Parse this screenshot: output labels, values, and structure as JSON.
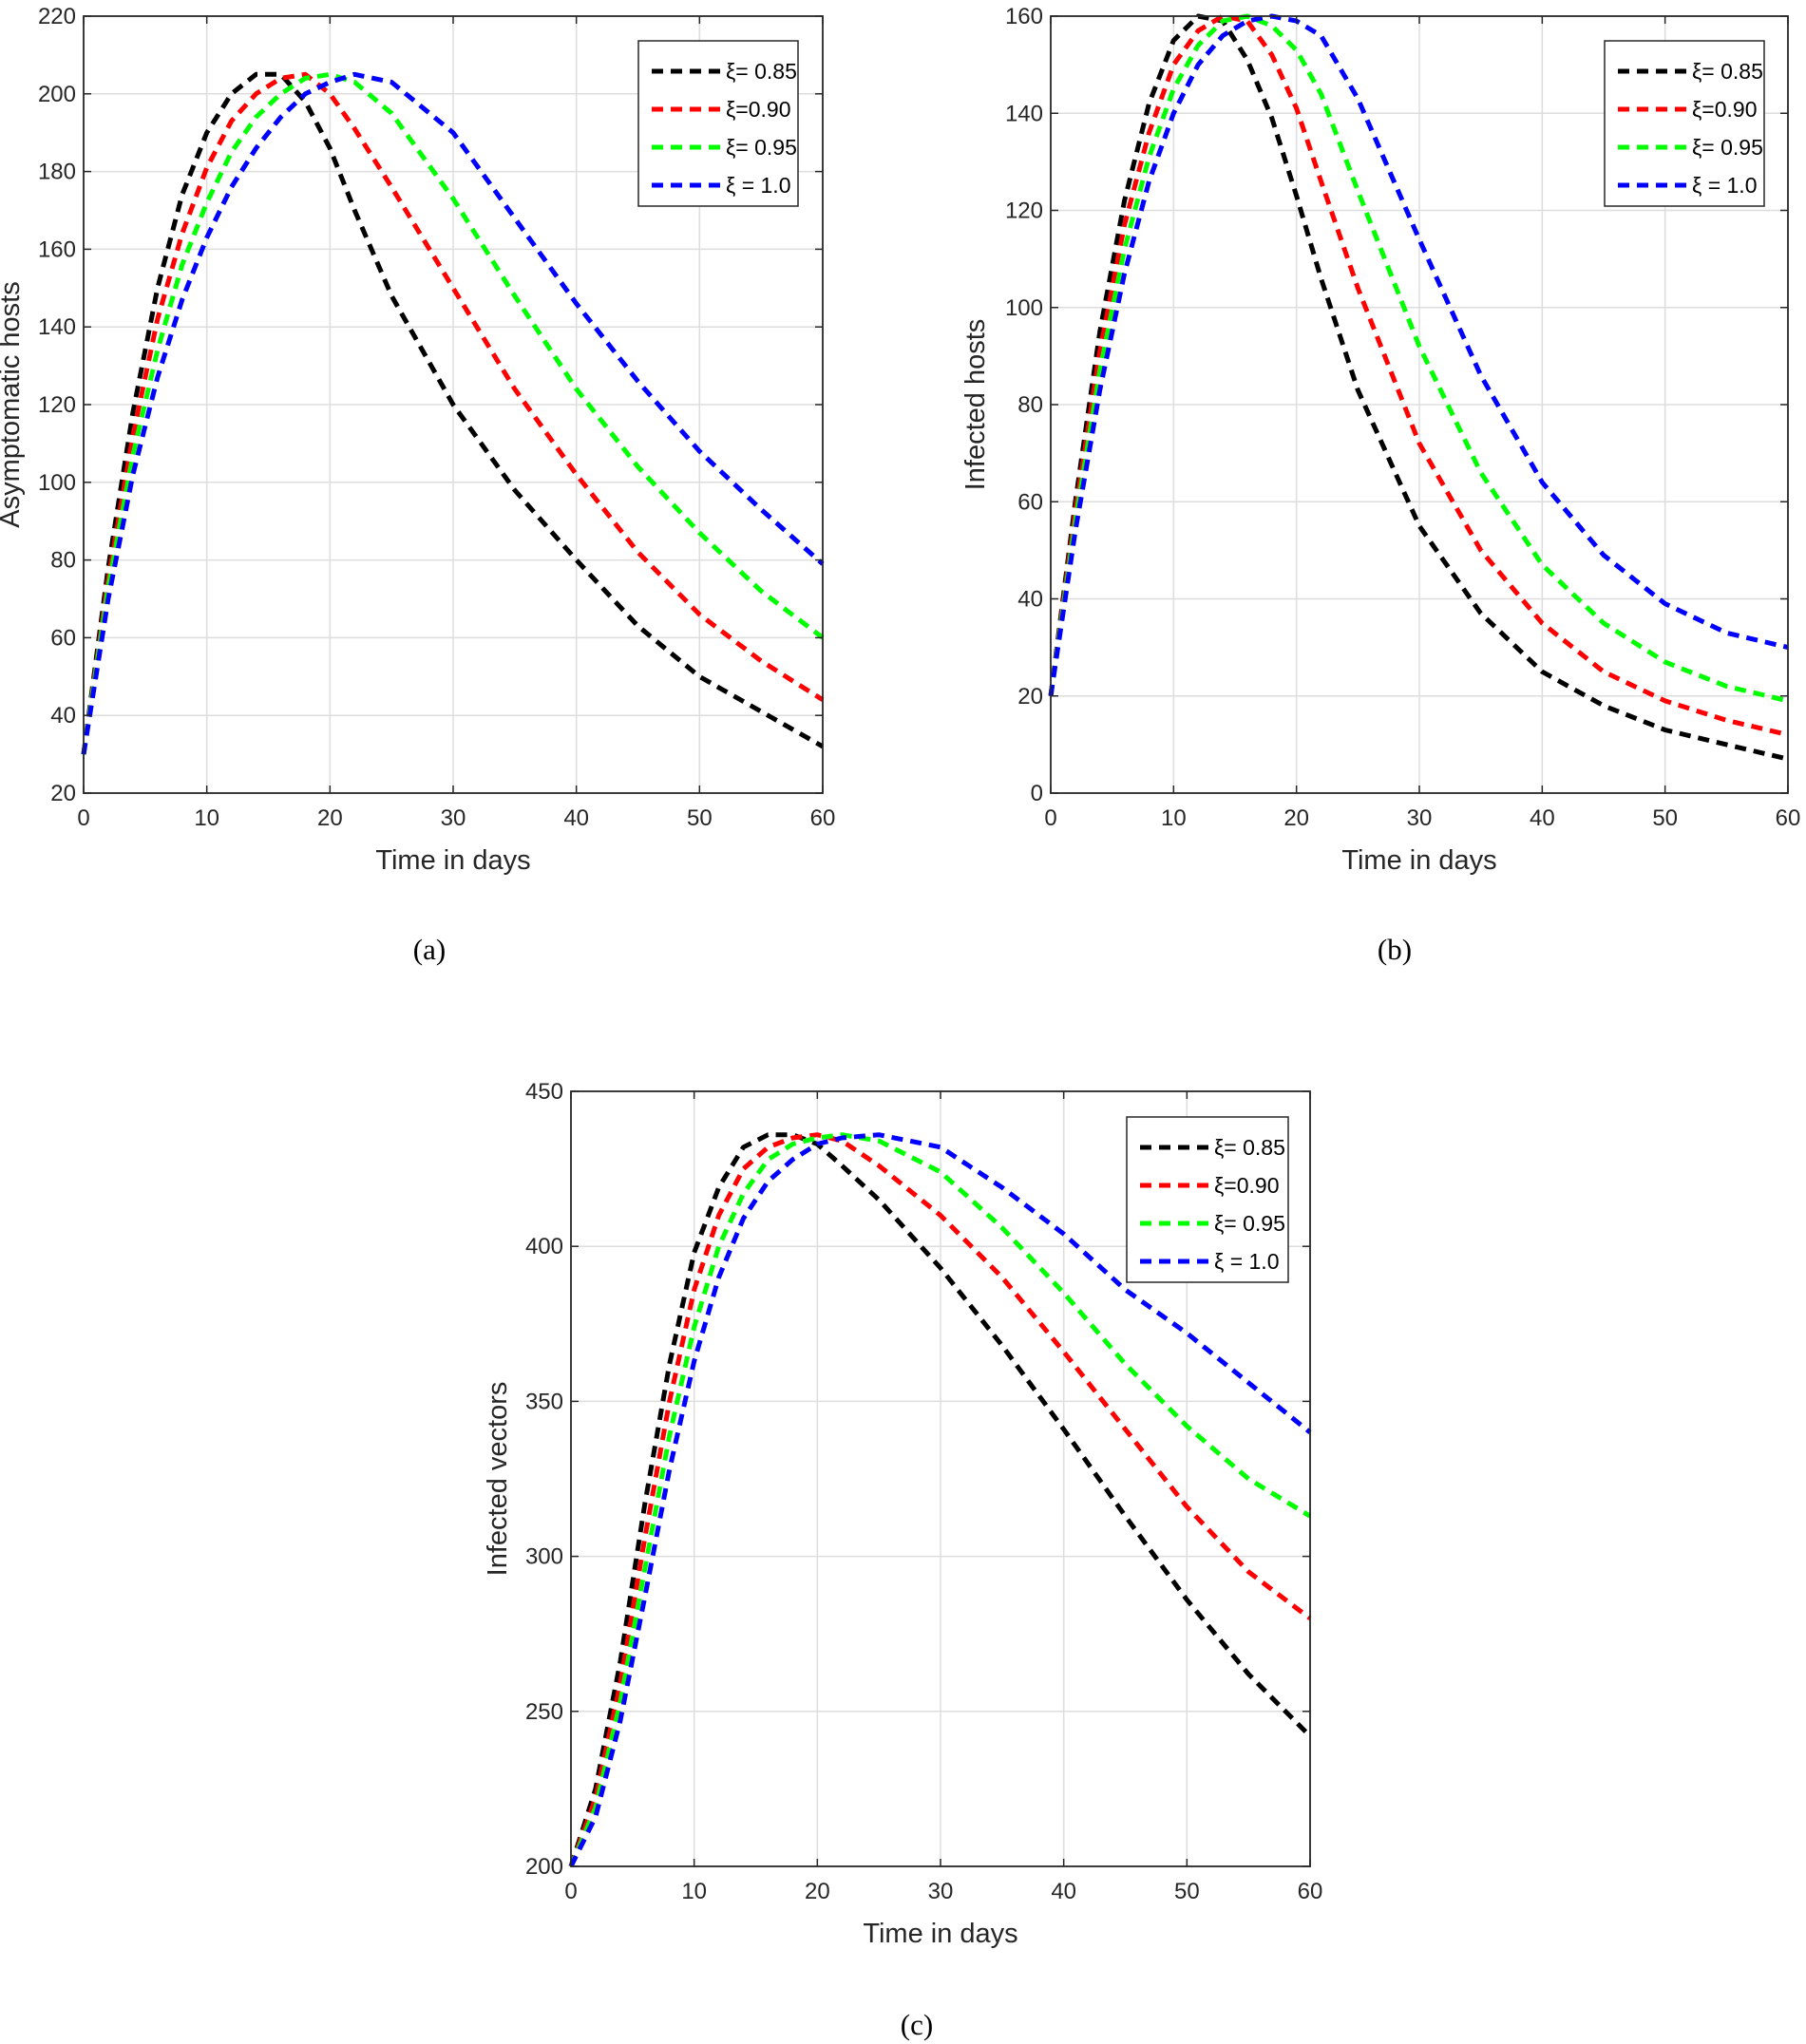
{
  "figure": {
    "captions": [
      "(a)",
      "(b)",
      "(c)"
    ]
  },
  "chart_data": [
    {
      "type": "line",
      "panel": "(a)",
      "xlabel": "Time in days",
      "ylabel": "Asymptomatic  hosts",
      "xlim": [
        0,
        60
      ],
      "ylim": [
        20,
        220
      ],
      "xticks": [
        0,
        10,
        20,
        30,
        40,
        50,
        60
      ],
      "yticks": [
        20,
        40,
        60,
        80,
        100,
        120,
        140,
        160,
        180,
        200,
        220
      ],
      "grid": true,
      "legend_position": "top-right",
      "series": [
        {
          "name": "ξ= 0.85",
          "color": "#000000",
          "x": [
            0,
            2,
            4,
            6,
            8,
            10,
            12,
            14,
            16,
            18,
            20,
            22,
            25,
            30,
            35,
            40,
            45,
            50,
            55,
            60
          ],
          "y": [
            30,
            78,
            118,
            150,
            174,
            190,
            200,
            205,
            205,
            198,
            186,
            170,
            148,
            120,
            98,
            80,
            63,
            50,
            41,
            32
          ]
        },
        {
          "name": "ξ=0.90",
          "color": "#ff0000",
          "x": [
            0,
            2,
            4,
            6,
            8,
            10,
            12,
            14,
            16,
            18,
            20,
            22,
            25,
            30,
            35,
            40,
            45,
            50,
            55,
            60
          ],
          "y": [
            30,
            75,
            112,
            142,
            164,
            181,
            193,
            200,
            204,
            205,
            200,
            191,
            176,
            150,
            124,
            102,
            82,
            66,
            54,
            44
          ]
        },
        {
          "name": "ξ= 0.95",
          "color": "#00ff00",
          "x": [
            0,
            2,
            4,
            6,
            8,
            10,
            12,
            14,
            16,
            18,
            20,
            22,
            25,
            30,
            35,
            40,
            45,
            50,
            55,
            60
          ],
          "y": [
            30,
            73,
            107,
            134,
            156,
            172,
            185,
            194,
            200,
            204,
            205,
            203,
            195,
            173,
            148,
            124,
            104,
            87,
            72,
            60
          ]
        },
        {
          "name": "ξ = 1.0",
          "color": "#0000ff",
          "x": [
            0,
            2,
            4,
            6,
            8,
            10,
            12,
            14,
            16,
            18,
            20,
            22,
            25,
            30,
            35,
            40,
            45,
            50,
            55,
            60
          ],
          "y": [
            30,
            70,
            102,
            127,
            147,
            163,
            176,
            186,
            194,
            200,
            203,
            205,
            203,
            190,
            168,
            146,
            126,
            108,
            93,
            79
          ]
        }
      ]
    },
    {
      "type": "line",
      "panel": "(b)",
      "xlabel": "Time in days",
      "ylabel": "Infected hosts",
      "xlim": [
        0,
        60
      ],
      "ylim": [
        0,
        160
      ],
      "xticks": [
        0,
        10,
        20,
        30,
        40,
        50,
        60
      ],
      "yticks": [
        0,
        20,
        40,
        60,
        80,
        100,
        120,
        140,
        160
      ],
      "grid": true,
      "legend_position": "top-right",
      "series": [
        {
          "name": "ξ= 0.85",
          "color": "#000000",
          "x": [
            0,
            2,
            4,
            6,
            8,
            10,
            12,
            14,
            16,
            18,
            20,
            22,
            25,
            30,
            35,
            40,
            45,
            50,
            55,
            60
          ],
          "y": [
            20,
            60,
            95,
            122,
            142,
            155,
            160,
            159,
            151,
            139,
            123,
            106,
            83,
            55,
            37,
            25,
            18,
            13,
            10,
            7
          ]
        },
        {
          "name": "ξ=0.90",
          "color": "#ff0000",
          "x": [
            0,
            2,
            4,
            6,
            8,
            10,
            12,
            14,
            16,
            18,
            20,
            22,
            25,
            30,
            35,
            40,
            45,
            50,
            55,
            60
          ],
          "y": [
            20,
            58,
            91,
            117,
            136,
            150,
            157,
            160,
            159,
            152,
            141,
            126,
            104,
            72,
            50,
            35,
            25,
            19,
            15,
            12
          ]
        },
        {
          "name": "ξ= 0.95",
          "color": "#00ff00",
          "x": [
            0,
            2,
            4,
            6,
            8,
            10,
            12,
            14,
            16,
            18,
            20,
            22,
            25,
            30,
            35,
            40,
            45,
            50,
            55,
            60
          ],
          "y": [
            20,
            56,
            87,
            112,
            131,
            145,
            154,
            159,
            160,
            158,
            153,
            144,
            124,
            92,
            66,
            47,
            35,
            27,
            22,
            19
          ]
        },
        {
          "name": "ξ = 1.0",
          "color": "#0000ff",
          "x": [
            0,
            2,
            4,
            6,
            8,
            10,
            12,
            14,
            16,
            18,
            20,
            22,
            25,
            30,
            35,
            40,
            45,
            50,
            55,
            60
          ],
          "y": [
            20,
            54,
            83,
            107,
            126,
            140,
            150,
            156,
            159,
            160,
            159,
            156,
            143,
            114,
            86,
            64,
            49,
            39,
            33,
            30
          ]
        }
      ]
    },
    {
      "type": "line",
      "panel": "(c)",
      "xlabel": "Time in days",
      "ylabel": "Infected vectors",
      "xlim": [
        0,
        60
      ],
      "ylim": [
        200,
        450
      ],
      "xticks": [
        0,
        10,
        20,
        30,
        40,
        50,
        60
      ],
      "yticks": [
        200,
        250,
        300,
        350,
        400,
        450
      ],
      "grid": true,
      "legend_position": "top-right",
      "series": [
        {
          "name": "ξ= 0.85",
          "color": "#000000",
          "x": [
            0,
            2,
            4,
            6,
            8,
            10,
            12,
            14,
            16,
            18,
            20,
            22,
            25,
            30,
            35,
            40,
            45,
            50,
            55,
            60
          ],
          "y": [
            200,
            225,
            266,
            317,
            362,
            398,
            419,
            432,
            436,
            436,
            433,
            426,
            415,
            393,
            368,
            341,
            313,
            286,
            262,
            242
          ]
        },
        {
          "name": "ξ=0.90",
          "color": "#ff0000",
          "x": [
            0,
            2,
            4,
            6,
            8,
            10,
            12,
            14,
            16,
            18,
            20,
            22,
            25,
            30,
            35,
            40,
            45,
            50,
            55,
            60
          ],
          "y": [
            200,
            222,
            259,
            306,
            350,
            386,
            410,
            425,
            432,
            435,
            436,
            434,
            426,
            410,
            390,
            366,
            341,
            316,
            295,
            280
          ]
        },
        {
          "name": "ξ= 0.95",
          "color": "#00ff00",
          "x": [
            0,
            2,
            4,
            6,
            8,
            10,
            12,
            14,
            16,
            18,
            20,
            22,
            25,
            30,
            35,
            40,
            45,
            50,
            55,
            60
          ],
          "y": [
            200,
            219,
            253,
            296,
            339,
            374,
            400,
            417,
            428,
            433,
            435,
            436,
            434,
            424,
            406,
            385,
            362,
            342,
            325,
            313
          ]
        },
        {
          "name": "ξ = 1.0",
          "color": "#0000ff",
          "x": [
            0,
            2,
            4,
            6,
            8,
            10,
            12,
            14,
            16,
            18,
            20,
            22,
            25,
            30,
            35,
            40,
            45,
            50,
            55,
            60
          ],
          "y": [
            200,
            216,
            247,
            287,
            328,
            363,
            390,
            409,
            421,
            428,
            433,
            435,
            436,
            432,
            419,
            404,
            386,
            372,
            356,
            340
          ]
        }
      ]
    }
  ]
}
